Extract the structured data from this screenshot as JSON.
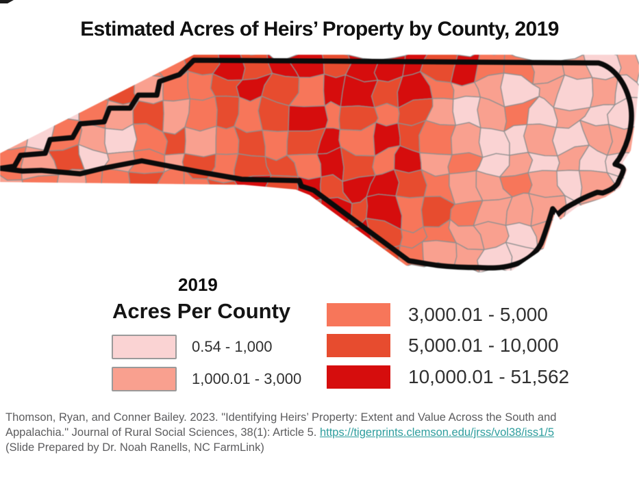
{
  "title": "Estimated Acres of Heirs’ Property by County, 2019",
  "map": {
    "palette": [
      "#FAD3D3",
      "#F9A08F",
      "#F7765A",
      "#E74C2F",
      "#D60D0D"
    ],
    "county_line_color": "#8F8F8F",
    "state_border_color": "#0B0B0B",
    "cells": [
      "232232234344344434221101",
      "121231223432443421101010",
      "210213123234232310120100",
      "102102312323424321001011",
      "213012132332432412010100",
      "121223223434344321121010",
      "212232232343434232111010",
      "121222322344343221101001",
      "222222223343343211000000"
    ]
  },
  "legend": {
    "year": "2019",
    "title": "Acres Per County",
    "items": [
      {
        "label": "0.54 - 1,000",
        "color": "#FAD3D3"
      },
      {
        "label": "1,000.01 - 3,000",
        "color": "#F9A08F"
      },
      {
        "label": "3,000.01 - 5,000",
        "color": "#F7765A"
      },
      {
        "label": "5,000.01 - 10,000",
        "color": "#E74C2F"
      },
      {
        "label": "10,000.01 - 51,562",
        "color": "#D60D0D"
      }
    ]
  },
  "citation": {
    "text_before_link": "Thomson, Ryan, and Conner Bailey. 2023. \"Identifying Heirs’ Property: Extent and Value Across the South and Appalachia.\" Journal of Rural Social Sciences, 38(1): Article 5. ",
    "link": "https://tigerprints.clemson.edu/jrss/vol38/iss1/5",
    "link_color": "#2D9D9D",
    "text_after_link": "(Slide Prepared by Dr. Noah Ranells, NC FarmLink)"
  }
}
